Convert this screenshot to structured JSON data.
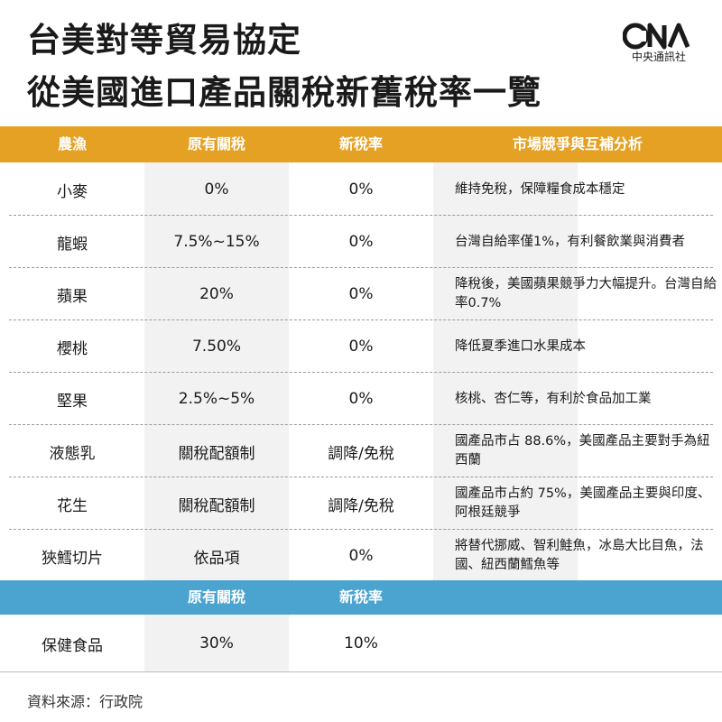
{
  "title_line1": "台美對等貿易協定",
  "title_line2": "從美國進口產品關稅新舊稅率一覽",
  "logo": {
    "text": "中央通訊社",
    "icon": "cna-logo-icon"
  },
  "header": {
    "col1": "農漁",
    "col2": "原有關稅",
    "col3": "新稅率",
    "col4": "市場競爭與互補分析"
  },
  "rows": [
    {
      "item": "小麥",
      "old": "0%",
      "new": "0%",
      "note": "維持免稅，保障糧食成本穩定"
    },
    {
      "item": "龍蝦",
      "old": "7.5%~15%",
      "new": "0%",
      "note": "台灣自給率僅1%，有利餐飲業與消費者"
    },
    {
      "item": "蘋果",
      "old": "20%",
      "new": "0%",
      "note": "降稅後，美國蘋果競爭力大幅提升。台灣自給率0.7%"
    },
    {
      "item": "櫻桃",
      "old": "7.50%",
      "new": "0%",
      "note": "降低夏季進口水果成本"
    },
    {
      "item": "堅果",
      "old": "2.5%~5%",
      "new": "0%",
      "note": "核桃、杏仁等，有利於食品加工業"
    },
    {
      "item": "液態乳",
      "old": "關稅配額制",
      "new": "調降/免稅",
      "note": "國產品市占 88.6%，美國產品主要對手為紐西蘭"
    },
    {
      "item": "花生",
      "old": "關稅配額制",
      "new": "調降/免稅",
      "note": "國產品市占約 75%，美國產品主要與印度、阿根廷競爭"
    },
    {
      "item": "狹鱈切片",
      "old": "依品項",
      "new": "0%",
      "note": "將替代挪威、智利鮭魚，冰島大比目魚，法國、紐西蘭鱈魚等"
    }
  ],
  "header2": {
    "col2": "原有關稅",
    "col3": "新稅率"
  },
  "health": {
    "item": "保健食品",
    "old": "30%",
    "new": "10%"
  },
  "source": "資料來源：行政院"
}
